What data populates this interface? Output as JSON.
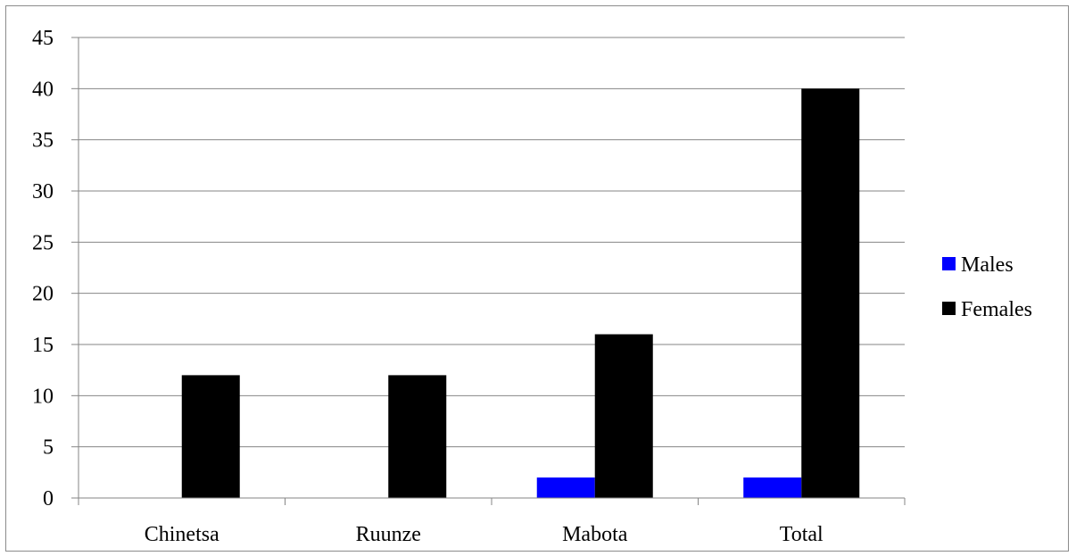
{
  "chart_data": {
    "type": "bar",
    "categories": [
      "Chinetsa",
      "Ruunze",
      "Mabota",
      "Total"
    ],
    "series": [
      {
        "name": "Males",
        "values": [
          0,
          0,
          2,
          2
        ],
        "color": "#0000ff"
      },
      {
        "name": "Females",
        "values": [
          12,
          12,
          16,
          40
        ],
        "color": "#000000"
      }
    ],
    "ylim": [
      0,
      45
    ],
    "yticks": [
      "0",
      "5",
      "10",
      "15",
      "20",
      "25",
      "30",
      "35",
      "40",
      "45"
    ],
    "grid": true,
    "legend_position": "right"
  }
}
